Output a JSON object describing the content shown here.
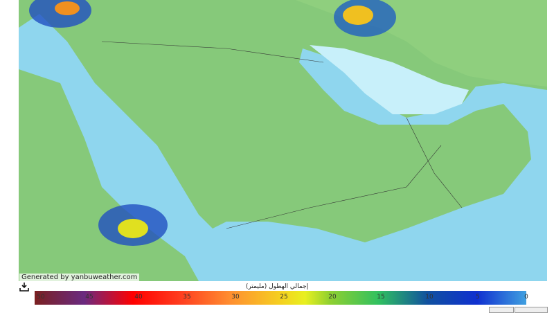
{
  "credit": "Generated by yanbuweather.com",
  "legend": {
    "title": "إجمالي الهطول (مليمتر)",
    "ticks": [
      "50",
      "45",
      "40",
      "35",
      "30",
      "25",
      "20",
      "15",
      "10",
      "5",
      "0"
    ],
    "colors": {
      "sea": "#8fd6ee",
      "land": "#86c97a",
      "low": "#40a0e0",
      "high": "#7a2020"
    }
  },
  "icons": {
    "download": "download-icon"
  }
}
